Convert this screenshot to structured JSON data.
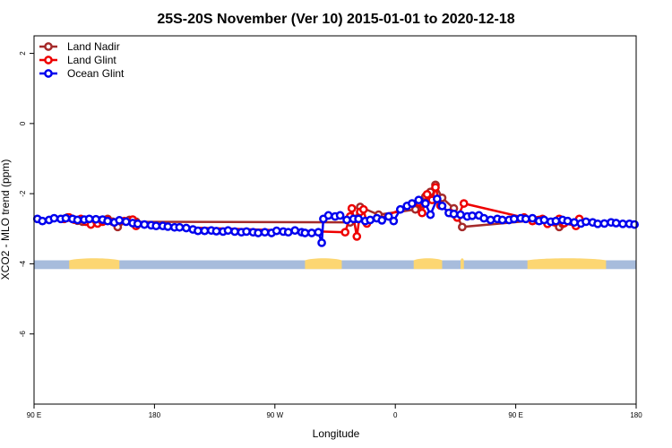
{
  "chart_data": {
    "type": "line",
    "title": "25S-20S November (Ver 10)   2015-01-01 to 2020-12-18",
    "xlabel": "Longitude",
    "ylabel": "XCO2 - MLO trend (ppm)",
    "xlim": [
      90,
      450
    ],
    "ylim": [
      -8,
      2.5
    ],
    "x_ticks": [
      {
        "value": 90,
        "label": "90 E"
      },
      {
        "value": 162,
        "label": "180"
      },
      {
        "value": 234,
        "label": "90 W"
      },
      {
        "value": 306,
        "label": "0"
      },
      {
        "value": 378,
        "label": "90 E"
      },
      {
        "value": 450,
        "label": "180"
      }
    ],
    "y_ticks": [
      {
        "value": 2,
        "label": "2"
      },
      {
        "value": 0,
        "label": "0"
      },
      {
        "value": -2,
        "label": "-2"
      },
      {
        "value": -4,
        "label": "-4"
      },
      {
        "value": -6,
        "label": "-6"
      }
    ],
    "land_band": {
      "y_range": [
        -4.15,
        -3.9
      ],
      "ocean_color": "#a7bcdc",
      "land_color": "#fcd672",
      "land_spans": [
        [
          111,
          141
        ],
        [
          252,
          274
        ],
        [
          317,
          334
        ],
        [
          345,
          347
        ],
        [
          385,
          432
        ]
      ]
    },
    "legend": {
      "position": "top-left",
      "entries": [
        {
          "name": "Land Nadir",
          "color": "#a52a2a"
        },
        {
          "name": "Land Glint",
          "color": "#ee0000"
        },
        {
          "name": "Ocean Glint",
          "color": "#0000ee"
        }
      ]
    },
    "series": [
      {
        "name": "Land Nadir",
        "color": "#a52a2a",
        "points": [
          [
            110,
            -2.68
          ],
          [
            113,
            -2.72
          ],
          [
            116,
            -2.77
          ],
          [
            119,
            -2.8
          ],
          [
            122,
            -2.75
          ],
          [
            127,
            -2.78
          ],
          [
            130,
            -2.76
          ],
          [
            134,
            -2.72
          ],
          [
            137,
            -2.8
          ],
          [
            140,
            -2.95
          ],
          [
            147,
            -2.75
          ],
          [
            151,
            -2.8
          ],
          [
            279,
            -2.82
          ],
          [
            282,
            -2.72
          ],
          [
            285,
            -2.38
          ],
          [
            296,
            -2.6
          ],
          [
            318,
            -2.45
          ],
          [
            321,
            -2.3
          ],
          [
            324,
            -2.08
          ],
          [
            327,
            -1.95
          ],
          [
            330,
            -1.75
          ],
          [
            334,
            -2.12
          ],
          [
            341,
            -2.42
          ],
          [
            346,
            -2.95
          ],
          [
            392,
            -2.75
          ],
          [
            404,
            -2.95
          ],
          [
            406,
            -2.86
          ],
          [
            417,
            -2.81
          ]
        ]
      },
      {
        "name": "Land Glint",
        "color": "#ee0000",
        "points": [
          [
            108,
            -2.72
          ],
          [
            111,
            -2.68
          ],
          [
            114,
            -2.74
          ],
          [
            118,
            -2.72
          ],
          [
            121,
            -2.8
          ],
          [
            124,
            -2.88
          ],
          [
            128,
            -2.85
          ],
          [
            131,
            -2.8
          ],
          [
            134,
            -2.75
          ],
          [
            138,
            -2.82
          ],
          [
            144,
            -2.78
          ],
          [
            149,
            -2.74
          ],
          [
            151,
            -2.92
          ],
          [
            276,
            -3.1
          ],
          [
            279,
            -2.65
          ],
          [
            280,
            -2.42
          ],
          [
            283,
            -3.22
          ],
          [
            285,
            -2.52
          ],
          [
            287,
            -2.45
          ],
          [
            289,
            -2.85
          ],
          [
            320,
            -2.25
          ],
          [
            322,
            -2.55
          ],
          [
            325,
            -2.02
          ],
          [
            328,
            -2.18
          ],
          [
            330,
            -1.82
          ],
          [
            333,
            -2.34
          ],
          [
            339,
            -2.55
          ],
          [
            343,
            -2.68
          ],
          [
            347,
            -2.28
          ],
          [
            383,
            -2.68
          ],
          [
            388,
            -2.78
          ],
          [
            391,
            -2.76
          ],
          [
            394,
            -2.72
          ],
          [
            397,
            -2.86
          ],
          [
            401,
            -2.81
          ],
          [
            404,
            -2.72
          ],
          [
            407,
            -2.84
          ],
          [
            414,
            -2.92
          ],
          [
            416,
            -2.72
          ]
        ]
      },
      {
        "name": "Ocean Glint",
        "color": "#0000ee",
        "points": [
          [
            92,
            -2.72
          ],
          [
            95,
            -2.78
          ],
          [
            99,
            -2.75
          ],
          [
            102,
            -2.7
          ],
          [
            106,
            -2.72
          ],
          [
            109,
            -2.7
          ],
          [
            113,
            -2.72
          ],
          [
            116,
            -2.75
          ],
          [
            120,
            -2.74
          ],
          [
            123,
            -2.72
          ],
          [
            127,
            -2.73
          ],
          [
            131,
            -2.74
          ],
          [
            134,
            -2.78
          ],
          [
            138,
            -2.82
          ],
          [
            141,
            -2.76
          ],
          [
            145,
            -2.8
          ],
          [
            149,
            -2.84
          ],
          [
            152,
            -2.86
          ],
          [
            156,
            -2.88
          ],
          [
            160,
            -2.9
          ],
          [
            163,
            -2.92
          ],
          [
            167,
            -2.92
          ],
          [
            170,
            -2.94
          ],
          [
            174,
            -2.96
          ],
          [
            177,
            -2.96
          ],
          [
            181,
            -2.98
          ],
          [
            185,
            -3.02
          ],
          [
            188,
            -3.06
          ],
          [
            192,
            -3.06
          ],
          [
            196,
            -3.05
          ],
          [
            199,
            -3.07
          ],
          [
            203,
            -3.08
          ],
          [
            206,
            -3.05
          ],
          [
            210,
            -3.08
          ],
          [
            214,
            -3.1
          ],
          [
            217,
            -3.08
          ],
          [
            221,
            -3.1
          ],
          [
            224,
            -3.12
          ],
          [
            228,
            -3.1
          ],
          [
            232,
            -3.12
          ],
          [
            235,
            -3.06
          ],
          [
            239,
            -3.08
          ],
          [
            242,
            -3.1
          ],
          [
            246,
            -3.05
          ],
          [
            250,
            -3.1
          ],
          [
            252,
            -3.12
          ],
          [
            256,
            -3.12
          ],
          [
            260,
            -3.1
          ],
          [
            262,
            -3.4
          ],
          [
            263,
            -2.72
          ],
          [
            266,
            -2.62
          ],
          [
            270,
            -2.65
          ],
          [
            273,
            -2.62
          ],
          [
            277,
            -2.75
          ],
          [
            281,
            -2.72
          ],
          [
            284,
            -2.72
          ],
          [
            288,
            -2.78
          ],
          [
            291,
            -2.75
          ],
          [
            295,
            -2.7
          ],
          [
            298,
            -2.76
          ],
          [
            302,
            -2.65
          ],
          [
            305,
            -2.78
          ],
          [
            309,
            -2.45
          ],
          [
            313,
            -2.35
          ],
          [
            316,
            -2.28
          ],
          [
            320,
            -2.18
          ],
          [
            324,
            -2.28
          ],
          [
            327,
            -2.6
          ],
          [
            331,
            -2.15
          ],
          [
            334,
            -2.35
          ],
          [
            338,
            -2.55
          ],
          [
            341,
            -2.58
          ],
          [
            345,
            -2.6
          ],
          [
            349,
            -2.65
          ],
          [
            352,
            -2.63
          ],
          [
            356,
            -2.62
          ],
          [
            359,
            -2.7
          ],
          [
            363,
            -2.75
          ],
          [
            367,
            -2.72
          ],
          [
            370,
            -2.75
          ],
          [
            374,
            -2.75
          ],
          [
            377,
            -2.72
          ],
          [
            381,
            -2.7
          ],
          [
            384,
            -2.72
          ],
          [
            388,
            -2.7
          ],
          [
            392,
            -2.78
          ],
          [
            395,
            -2.75
          ],
          [
            399,
            -2.8
          ],
          [
            402,
            -2.78
          ],
          [
            406,
            -2.75
          ],
          [
            409,
            -2.78
          ],
          [
            413,
            -2.82
          ],
          [
            417,
            -2.85
          ],
          [
            420,
            -2.8
          ],
          [
            424,
            -2.82
          ],
          [
            427,
            -2.86
          ],
          [
            431,
            -2.85
          ],
          [
            435,
            -2.82
          ],
          [
            438,
            -2.84
          ],
          [
            442,
            -2.86
          ],
          [
            446,
            -2.86
          ],
          [
            449,
            -2.88
          ]
        ]
      }
    ]
  }
}
